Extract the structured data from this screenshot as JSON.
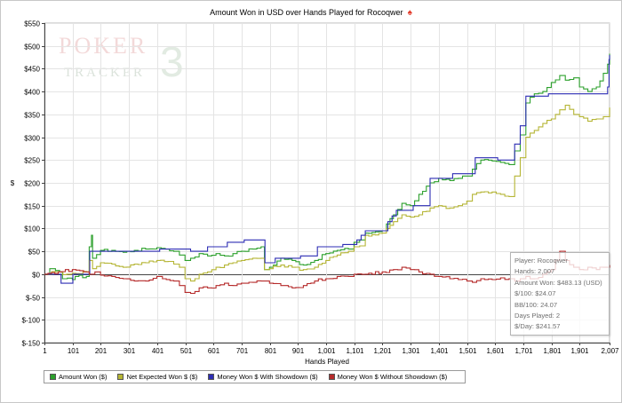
{
  "chart_data": {
    "type": "line",
    "title": "Amount Won in USD over Hands Played for Rocoqwer",
    "xlabel": "Hands Played",
    "ylabel": "$",
    "xlim": [
      1,
      2007
    ],
    "ylim": [
      -150,
      550
    ],
    "grid": true,
    "x_ticks": [
      1,
      101,
      201,
      301,
      401,
      501,
      601,
      701,
      801,
      901,
      1001,
      1101,
      1201,
      1301,
      1401,
      1501,
      1601,
      1701,
      1801,
      1901,
      2007
    ],
    "x_tick_labels": [
      "1",
      "101",
      "201",
      "301",
      "401",
      "501",
      "601",
      "701",
      "801",
      "901",
      "1,001",
      "1,101",
      "1,201",
      "1,301",
      "1,401",
      "1,501",
      "1,601",
      "1,701",
      "1,801",
      "1,901",
      "2,007"
    ],
    "y_ticks": [
      -150,
      -100,
      -50,
      0,
      50,
      100,
      150,
      200,
      250,
      300,
      350,
      400,
      450,
      500,
      550
    ],
    "y_tick_labels": [
      "$-150",
      "$-100",
      "$-50",
      "$0",
      "$50",
      "$100",
      "$150",
      "$200",
      "$250",
      "$300",
      "$350",
      "$400",
      "$450",
      "$500",
      "$550"
    ],
    "legend_position": "bottom",
    "series": [
      {
        "name": "Amount Won ($)",
        "color": "#2ca02c",
        "points": [
          [
            1,
            0
          ],
          [
            20,
            12
          ],
          [
            40,
            8
          ],
          [
            55,
            5
          ],
          [
            65,
            -10
          ],
          [
            100,
            -12
          ],
          [
            110,
            -5
          ],
          [
            150,
            -5
          ],
          [
            160,
            60
          ],
          [
            168,
            85
          ],
          [
            172,
            35
          ],
          [
            200,
            52
          ],
          [
            240,
            52
          ],
          [
            280,
            48
          ],
          [
            320,
            52
          ],
          [
            360,
            55
          ],
          [
            400,
            58
          ],
          [
            430,
            55
          ],
          [
            460,
            50
          ],
          [
            480,
            42
          ],
          [
            500,
            30
          ],
          [
            520,
            35
          ],
          [
            550,
            45
          ],
          [
            580,
            40
          ],
          [
            610,
            45
          ],
          [
            640,
            40
          ],
          [
            670,
            45
          ],
          [
            700,
            50
          ],
          [
            740,
            55
          ],
          [
            770,
            60
          ],
          [
            782,
            10
          ],
          [
            800,
            15
          ],
          [
            840,
            35
          ],
          [
            880,
            30
          ],
          [
            920,
            20
          ],
          [
            960,
            30
          ],
          [
            1000,
            45
          ],
          [
            1040,
            52
          ],
          [
            1080,
            55
          ],
          [
            1100,
            70
          ],
          [
            1120,
            75
          ],
          [
            1140,
            90
          ],
          [
            1200,
            95
          ],
          [
            1215,
            110
          ],
          [
            1240,
            130
          ],
          [
            1270,
            155
          ],
          [
            1300,
            150
          ],
          [
            1330,
            175
          ],
          [
            1370,
            200
          ],
          [
            1400,
            210
          ],
          [
            1440,
            205
          ],
          [
            1470,
            210
          ],
          [
            1500,
            215
          ],
          [
            1520,
            230
          ],
          [
            1550,
            250
          ],
          [
            1590,
            248
          ],
          [
            1620,
            245
          ],
          [
            1650,
            240
          ],
          [
            1670,
            270
          ],
          [
            1690,
            305
          ],
          [
            1710,
            375
          ],
          [
            1740,
            395
          ],
          [
            1770,
            400
          ],
          [
            1800,
            420
          ],
          [
            1830,
            435
          ],
          [
            1850,
            425
          ],
          [
            1880,
            430
          ],
          [
            1900,
            410
          ],
          [
            1930,
            400
          ],
          [
            1960,
            410
          ],
          [
            1985,
            440
          ],
          [
            2000,
            460
          ],
          [
            2007,
            483
          ]
        ]
      },
      {
        "name": "Net Expected Won $ ($)",
        "color": "#b5b534",
        "points": [
          [
            1,
            0
          ],
          [
            40,
            5
          ],
          [
            80,
            0
          ],
          [
            100,
            2
          ],
          [
            150,
            5
          ],
          [
            160,
            30
          ],
          [
            172,
            12
          ],
          [
            200,
            25
          ],
          [
            240,
            22
          ],
          [
            280,
            15
          ],
          [
            320,
            22
          ],
          [
            360,
            25
          ],
          [
            400,
            30
          ],
          [
            440,
            28
          ],
          [
            460,
            22
          ],
          [
            480,
            15
          ],
          [
            500,
            -10
          ],
          [
            520,
            -15
          ],
          [
            550,
            0
          ],
          [
            580,
            5
          ],
          [
            610,
            15
          ],
          [
            640,
            20
          ],
          [
            670,
            25
          ],
          [
            700,
            30
          ],
          [
            740,
            35
          ],
          [
            770,
            35
          ],
          [
            782,
            10
          ],
          [
            800,
            12
          ],
          [
            840,
            20
          ],
          [
            880,
            15
          ],
          [
            920,
            10
          ],
          [
            960,
            15
          ],
          [
            1000,
            30
          ],
          [
            1040,
            42
          ],
          [
            1080,
            50
          ],
          [
            1100,
            60
          ],
          [
            1120,
            62
          ],
          [
            1140,
            85
          ],
          [
            1200,
            90
          ],
          [
            1215,
            100
          ],
          [
            1240,
            115
          ],
          [
            1270,
            130
          ],
          [
            1300,
            125
          ],
          [
            1330,
            130
          ],
          [
            1370,
            145
          ],
          [
            1400,
            150
          ],
          [
            1440,
            145
          ],
          [
            1470,
            150
          ],
          [
            1500,
            160
          ],
          [
            1520,
            175
          ],
          [
            1550,
            180
          ],
          [
            1590,
            180
          ],
          [
            1620,
            175
          ],
          [
            1650,
            170
          ],
          [
            1670,
            215
          ],
          [
            1690,
            255
          ],
          [
            1710,
            300
          ],
          [
            1740,
            315
          ],
          [
            1770,
            330
          ],
          [
            1800,
            340
          ],
          [
            1830,
            360
          ],
          [
            1850,
            370
          ],
          [
            1880,
            350
          ],
          [
            1900,
            345
          ],
          [
            1930,
            335
          ],
          [
            1960,
            340
          ],
          [
            1985,
            345
          ],
          [
            2007,
            365
          ]
        ]
      },
      {
        "name": "Money Won $ With Showdown ($)",
        "color": "#2d2db4",
        "points": [
          [
            1,
            0
          ],
          [
            55,
            0
          ],
          [
            60,
            -20
          ],
          [
            100,
            -20
          ],
          [
            102,
            0
          ],
          [
            160,
            0
          ],
          [
            162,
            50
          ],
          [
            200,
            50
          ],
          [
            400,
            50
          ],
          [
            410,
            55
          ],
          [
            500,
            55
          ],
          [
            520,
            50
          ],
          [
            560,
            50
          ],
          [
            580,
            60
          ],
          [
            640,
            60
          ],
          [
            650,
            70
          ],
          [
            700,
            70
          ],
          [
            710,
            75
          ],
          [
            782,
            75
          ],
          [
            784,
            25
          ],
          [
            810,
            25
          ],
          [
            820,
            35
          ],
          [
            900,
            35
          ],
          [
            910,
            40
          ],
          [
            960,
            40
          ],
          [
            970,
            60
          ],
          [
            1050,
            60
          ],
          [
            1060,
            65
          ],
          [
            1100,
            65
          ],
          [
            1110,
            75
          ],
          [
            1140,
            95
          ],
          [
            1210,
            95
          ],
          [
            1220,
            115
          ],
          [
            1250,
            140
          ],
          [
            1300,
            140
          ],
          [
            1310,
            150
          ],
          [
            1360,
            150
          ],
          [
            1370,
            210
          ],
          [
            1440,
            210
          ],
          [
            1450,
            220
          ],
          [
            1520,
            220
          ],
          [
            1530,
            255
          ],
          [
            1600,
            255
          ],
          [
            1610,
            250
          ],
          [
            1660,
            250
          ],
          [
            1670,
            285
          ],
          [
            1690,
            325
          ],
          [
            1710,
            390
          ],
          [
            1780,
            390
          ],
          [
            1790,
            395
          ],
          [
            1990,
            395
          ],
          [
            2000,
            410
          ],
          [
            2005,
            470
          ],
          [
            2007,
            480
          ]
        ]
      },
      {
        "name": "Money Won $ Without Showdown ($)",
        "color": "#b52a2a",
        "points": [
          [
            1,
            0
          ],
          [
            50,
            5
          ],
          [
            100,
            10
          ],
          [
            140,
            5
          ],
          [
            160,
            0
          ],
          [
            180,
            5
          ],
          [
            200,
            -2
          ],
          [
            240,
            -5
          ],
          [
            280,
            -10
          ],
          [
            320,
            -15
          ],
          [
            360,
            -15
          ],
          [
            400,
            -5
          ],
          [
            420,
            -10
          ],
          [
            460,
            -15
          ],
          [
            480,
            -25
          ],
          [
            500,
            -40
          ],
          [
            520,
            -42
          ],
          [
            550,
            -30
          ],
          [
            580,
            -30
          ],
          [
            610,
            -25
          ],
          [
            640,
            -20
          ],
          [
            670,
            -25
          ],
          [
            700,
            -20
          ],
          [
            740,
            -18
          ],
          [
            770,
            -15
          ],
          [
            782,
            -15
          ],
          [
            800,
            -20
          ],
          [
            840,
            -25
          ],
          [
            880,
            -30
          ],
          [
            920,
            -25
          ],
          [
            960,
            -15
          ],
          [
            1000,
            -10
          ],
          [
            1040,
            -5
          ],
          [
            1080,
            -5
          ],
          [
            1100,
            0
          ],
          [
            1140,
            0
          ],
          [
            1200,
            5
          ],
          [
            1240,
            10
          ],
          [
            1270,
            15
          ],
          [
            1300,
            10
          ],
          [
            1330,
            5
          ],
          [
            1370,
            0
          ],
          [
            1400,
            -5
          ],
          [
            1440,
            -10
          ],
          [
            1470,
            -12
          ],
          [
            1500,
            -15
          ],
          [
            1520,
            -18
          ],
          [
            1550,
            -10
          ],
          [
            1590,
            -12
          ],
          [
            1620,
            -8
          ],
          [
            1650,
            -10
          ],
          [
            1670,
            -15
          ],
          [
            1690,
            -10
          ],
          [
            1710,
            -5
          ],
          [
            1740,
            -10
          ],
          [
            1770,
            0
          ],
          [
            1800,
            10
          ],
          [
            1830,
            50
          ],
          [
            1850,
            30
          ],
          [
            1880,
            15
          ],
          [
            1900,
            10
          ],
          [
            1930,
            15
          ],
          [
            1960,
            10
          ],
          [
            1985,
            15
          ],
          [
            2007,
            20
          ]
        ]
      }
    ]
  },
  "tooltip": {
    "player": "Player: Rocoqwer",
    "hands": "Hands: 2,007",
    "amount_won": "Amount Won: $483.13 (USD)",
    "per_100": "$/100: $24.07",
    "bb_100": "BB/100: 24.07",
    "days_played": "Days Played: 2",
    "per_day": "$/Day: $241.57"
  },
  "watermark": {
    "line1": "POKER",
    "line2": "TRACKER",
    "version": "3"
  },
  "icons": {
    "title_icon": "poker-chip-icon"
  }
}
